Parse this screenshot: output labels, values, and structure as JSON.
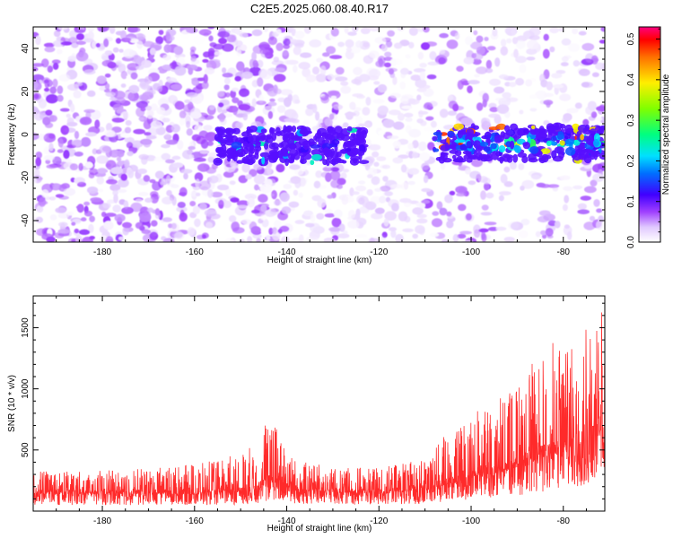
{
  "title": "C2E5.2025.060.08.40.R17",
  "colors": {
    "snr_line": "#ff2a2a",
    "spectrogram_low": "#8a2be2",
    "spectrogram_high": "#ff0000"
  },
  "chart_data": [
    {
      "type": "heatmap",
      "xlabel": "Height of straight line (km)",
      "ylabel": "Frequency (Hz)",
      "xlim": [
        -195,
        -71
      ],
      "ylim": [
        -50,
        50
      ],
      "x_ticks": [
        "-180",
        "-160",
        "-140",
        "-120",
        "-100",
        "-80"
      ],
      "y_ticks": [
        "-40",
        "-20",
        "0",
        "20",
        "40"
      ],
      "colorbar": {
        "label": "Normalized spectral amplitude",
        "range": [
          0.0,
          0.53
        ],
        "ticks": [
          "0.0",
          "0.1",
          "0.2",
          "0.3",
          "0.4",
          "0.5"
        ]
      },
      "signal_bands": [
        {
          "x_start": -155,
          "x_end": -123,
          "freq_center": -5,
          "peak_amplitude": 0.25
        },
        {
          "x_start": -108,
          "x_end": -71,
          "freq_center": -4,
          "peak_amplitude": 0.5
        }
      ],
      "background_noise_amplitude": [
        0.0,
        0.08
      ]
    },
    {
      "type": "line",
      "xlabel": "Height of straight line (km)",
      "ylabel": "SNR (10 * v/v)",
      "xlim": [
        -195,
        -71
      ],
      "ylim": [
        0,
        1760
      ],
      "x_ticks": [
        "-180",
        "-160",
        "-140",
        "-120",
        "-100",
        "-80"
      ],
      "y_ticks": [
        "500",
        "1000",
        "1500"
      ],
      "envelope": {
        "x": [
          -195,
          -180,
          -165,
          -155,
          -148,
          -145,
          -143,
          -141,
          -138,
          -130,
          -120,
          -110,
          -105,
          -100,
          -95,
          -90,
          -85,
          -82,
          -80,
          -78,
          -75,
          -73,
          -71
        ],
        "baseline": [
          140,
          140,
          140,
          145,
          160,
          210,
          260,
          220,
          170,
          150,
          150,
          170,
          220,
          270,
          300,
          360,
          430,
          470,
          480,
          520,
          580,
          600,
          700
        ],
        "peak": [
          330,
          330,
          360,
          420,
          520,
          740,
          760,
          600,
          420,
          360,
          350,
          440,
          650,
          800,
          900,
          1050,
          1300,
          1400,
          1350,
          1500,
          1560,
          1450,
          1750
        ]
      }
    }
  ]
}
